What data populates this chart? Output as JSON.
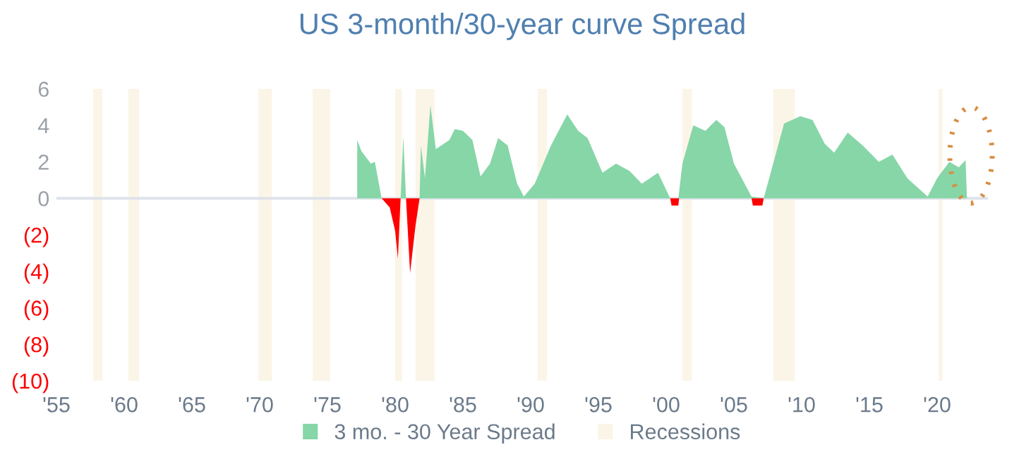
{
  "chart_data": {
    "type": "area",
    "title": "US 3-month/30-year curve Spread",
    "series": [
      {
        "name": "3 mo. - 30 Year Spread",
        "color": "#86d6a8",
        "x": [
          1977.2,
          1977.5,
          1978.2,
          1978.5,
          1979.0,
          1980.4,
          1980.6,
          1980.8,
          1981.8,
          1981.9,
          1982.2,
          1982.6,
          1983.0,
          1984.0,
          1984.4,
          1985.0,
          1985.7,
          1986.3,
          1987.0,
          1987.6,
          1988.3,
          1989.0,
          1989.5,
          1990.3,
          1991.5,
          1992.7,
          1993.5,
          1994.2,
          1995.3,
          1996.3,
          1997.3,
          1998.2,
          1999.4,
          2000.3,
          2000.9,
          2001.2,
          2002.0,
          2002.9,
          2003.7,
          2004.3,
          2005.0,
          2006.3,
          2007.2,
          2007.9,
          2008.7,
          2009.9,
          2010.8,
          2011.7,
          2012.4,
          2013.4,
          2014.5,
          2015.7,
          2016.7,
          2017.8,
          2019.3,
          2020.0,
          2020.9,
          2021.6,
          2022.1,
          2022.2
        ],
        "values": [
          3.2,
          2.6,
          1.9,
          2.0,
          0,
          0,
          3.4,
          0,
          0,
          2.9,
          1.1,
          5.1,
          2.7,
          3.2,
          3.8,
          3.7,
          3.2,
          1.2,
          1.9,
          3.3,
          2.9,
          0.8,
          0.1,
          0.8,
          2.9,
          4.6,
          3.7,
          3.3,
          1.4,
          1.9,
          1.5,
          0.8,
          1.4,
          0,
          0,
          1.9,
          4.0,
          3.7,
          4.3,
          3.9,
          1.9,
          0.1,
          0,
          1.9,
          4.1,
          4.5,
          4.3,
          3.0,
          2.5,
          3.6,
          2.9,
          2.0,
          2.4,
          1.1,
          0.1,
          1.1,
          2.0,
          1.7,
          2.1,
          0
        ]
      },
      {
        "color": "#ff0000",
        "x": [
          1979.0,
          1979.6,
          1980.0,
          1980.2,
          1980.4,
          1980.8,
          1981.1,
          1981.5,
          1981.8,
          2000.3,
          2000.4,
          2000.9,
          2000.95,
          2006.3,
          2006.4,
          2007.1,
          2007.2
        ],
        "values": [
          0,
          -0.5,
          -1.8,
          -3.3,
          0,
          0,
          -4.1,
          -1.5,
          0,
          0,
          -0.4,
          -0.4,
          0,
          0,
          -0.4,
          -0.4,
          0
        ]
      }
    ],
    "bands": [
      {
        "axis": "x",
        "from": 1957.7,
        "to": 1958.4,
        "label": "Recessions",
        "color": "#fbf5e8"
      },
      {
        "axis": "x",
        "from": 1960.3,
        "to": 1961.1,
        "color": "#fbf5e8"
      },
      {
        "axis": "x",
        "from": 1969.9,
        "to": 1970.9,
        "color": "#fbf5e8"
      },
      {
        "axis": "x",
        "from": 1973.9,
        "to": 1975.2,
        "color": "#fbf5e8"
      },
      {
        "axis": "x",
        "from": 1980.0,
        "to": 1980.5,
        "color": "#fbf5e8"
      },
      {
        "axis": "x",
        "from": 1981.5,
        "to": 1982.9,
        "color": "#fbf5e8"
      },
      {
        "axis": "x",
        "from": 1990.5,
        "to": 1991.2,
        "color": "#fbf5e8"
      },
      {
        "axis": "x",
        "from": 2001.2,
        "to": 2001.9,
        "color": "#fbf5e8"
      },
      {
        "axis": "x",
        "from": 2007.9,
        "to": 2009.5,
        "color": "#fbf5e8"
      },
      {
        "axis": "x",
        "from": 2020.1,
        "to": 2020.4,
        "color": "#fbf5e8"
      }
    ],
    "ref_lines": [
      {
        "axis": "y",
        "value": 0,
        "color": "#dfe3ea"
      }
    ],
    "xlim": [
      1955,
      2023.75
    ],
    "xticks": [
      {
        "value": 1955,
        "label": "'55"
      },
      {
        "value": 1960,
        "label": "'60"
      },
      {
        "value": 1965,
        "label": "'65"
      },
      {
        "value": 1970,
        "label": "'70"
      },
      {
        "value": 1975,
        "label": "'75"
      },
      {
        "value": 1980,
        "label": "'80"
      },
      {
        "value": 1985,
        "label": "'85"
      },
      {
        "value": 1990,
        "label": "'90"
      },
      {
        "value": 1995,
        "label": "'95"
      },
      {
        "value": 2000,
        "label": "'00"
      },
      {
        "value": 2005,
        "label": "'05"
      },
      {
        "value": 2010,
        "label": "'10"
      },
      {
        "value": 2015,
        "label": "'15"
      },
      {
        "value": 2020,
        "label": "'20"
      }
    ],
    "ylim": [
      -10,
      6
    ],
    "yticks": [
      6,
      4,
      2,
      0,
      {
        "value": -2,
        "label": "(2)"
      },
      {
        "value": -4,
        "label": "(4)"
      },
      {
        "value": -6,
        "label": "(6)"
      },
      {
        "value": -8,
        "label": "(8)"
      },
      {
        "value": -10,
        "label": "(10)"
      }
    ],
    "grid": false,
    "legend": "bottom"
  }
}
